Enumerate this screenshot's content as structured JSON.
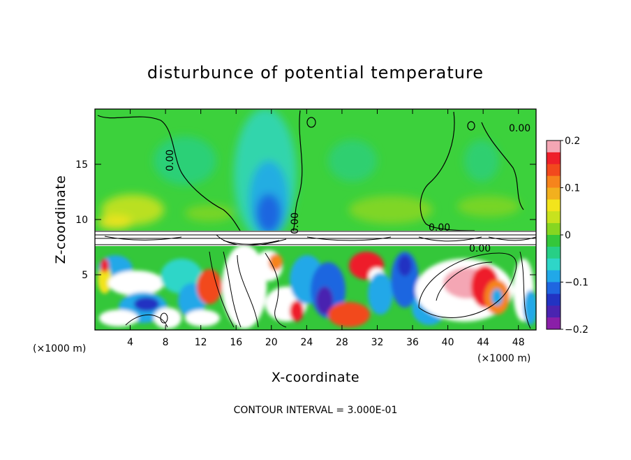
{
  "chart_data": {
    "type": "heatmap",
    "title": "disturbunce of potential temperature",
    "xlabel": "X-coordinate",
    "ylabel": "Z-coordinate",
    "x_unit": "(×1000 m)",
    "x_unit_right": "(×1000 m)",
    "xlim": [
      0,
      50
    ],
    "ylim": [
      0,
      20
    ],
    "x_ticks": [
      4,
      8,
      12,
      16,
      20,
      24,
      28,
      32,
      36,
      40,
      44,
      48
    ],
    "y_ticks": [
      5,
      10,
      15
    ],
    "colorbar": {
      "range": [
        -0.2,
        0.2
      ],
      "tick_labels": [
        "0.2",
        "0.1",
        "0",
        "−0.1",
        "−0.2"
      ],
      "tick_values": [
        0.2,
        0.1,
        0,
        -0.1,
        -0.2
      ],
      "colors": [
        "#f4a6b4",
        "#ee1f2a",
        "#f2491d",
        "#f6841c",
        "#f2b01e",
        "#f2e41c",
        "#c8e21e",
        "#86d621",
        "#34c73a",
        "#27cf86",
        "#2ed6c8",
        "#21a8e8",
        "#1f66e0",
        "#2233c2",
        "#4a24b0",
        "#8a1fa8"
      ]
    },
    "contour_labels": [
      "0.00",
      "0.00",
      "0.00",
      "0.00",
      "0.00"
    ],
    "contour_interval_text": "CONTOUR INTERVAL = 3.000E-01"
  }
}
